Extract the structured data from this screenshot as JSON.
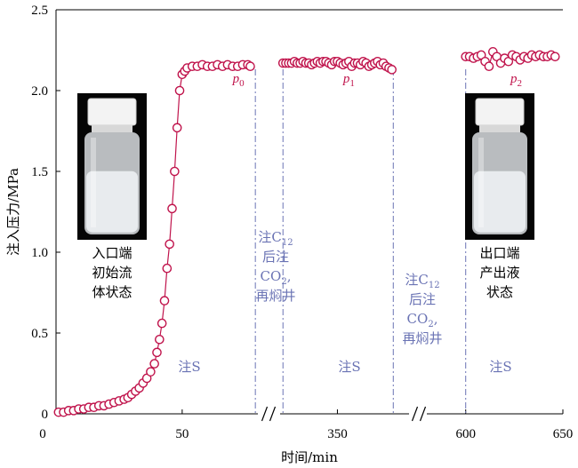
{
  "chart_data": {
    "type": "scatter",
    "title": "",
    "xlabel": "时间/min",
    "ylabel": "注入压力/MPa",
    "ylim": [
      0,
      2.5
    ],
    "yticks": [
      "0",
      "0.5",
      "1.0",
      "1.5",
      "2.0",
      "2.5"
    ],
    "ytick_values": [
      0,
      0.5,
      1.0,
      1.5,
      2.0,
      2.5
    ],
    "xticks": [
      "0",
      "50",
      "350",
      "600",
      "650"
    ],
    "broken_axis": true,
    "segments": [
      {
        "name": "",
        "xlim": [
          0,
          80
        ],
        "tick_values": [
          0,
          50
        ]
      },
      {
        "name": "",
        "xlim": [
          310,
          400
        ],
        "tick_values": [
          350
        ]
      },
      {
        "name": "",
        "xlim": [
          580,
          650
        ],
        "tick_values": [
          600,
          650
        ]
      }
    ],
    "series_color": "#c0144c",
    "series": [
      {
        "name": "",
        "segment": 0,
        "x": [
          1,
          3,
          5,
          7,
          9,
          11,
          13,
          15,
          17,
          19,
          21,
          23,
          25,
          27,
          28.5,
          30,
          31.5,
          33,
          34.5,
          36,
          37.5,
          39,
          40,
          41,
          42,
          43,
          44,
          45,
          46,
          47,
          48,
          49,
          50,
          51,
          52,
          54,
          56,
          58,
          60,
          62,
          64,
          66,
          68,
          70,
          72,
          74,
          76,
          77
        ],
        "y": [
          0.01,
          0.01,
          0.02,
          0.02,
          0.03,
          0.03,
          0.04,
          0.04,
          0.05,
          0.05,
          0.06,
          0.07,
          0.08,
          0.09,
          0.1,
          0.12,
          0.14,
          0.16,
          0.19,
          0.22,
          0.26,
          0.31,
          0.38,
          0.46,
          0.56,
          0.7,
          0.9,
          1.05,
          1.27,
          1.5,
          1.77,
          2.0,
          2.1,
          2.12,
          2.14,
          2.15,
          2.15,
          2.16,
          2.15,
          2.15,
          2.16,
          2.15,
          2.16,
          2.15,
          2.15,
          2.16,
          2.16,
          2.15
        ]
      },
      {
        "name": "",
        "segment": 1,
        "x": [
          312,
          314,
          316,
          318,
          320,
          322,
          324,
          326,
          328,
          330,
          332,
          334,
          336,
          338,
          340,
          342,
          344,
          346,
          348,
          350,
          352,
          354,
          356,
          358,
          360,
          362,
          364,
          366,
          368,
          370,
          372,
          374,
          376,
          378,
          380,
          382,
          384,
          386,
          388
        ],
        "y": [
          2.17,
          2.17,
          2.17,
          2.17,
          2.18,
          2.17,
          2.17,
          2.18,
          2.17,
          2.17,
          2.16,
          2.17,
          2.18,
          2.17,
          2.18,
          2.18,
          2.17,
          2.16,
          2.18,
          2.18,
          2.17,
          2.16,
          2.17,
          2.18,
          2.15,
          2.17,
          2.17,
          2.16,
          2.18,
          2.17,
          2.15,
          2.16,
          2.17,
          2.18,
          2.16,
          2.17,
          2.15,
          2.14,
          2.13
        ]
      },
      {
        "name": "",
        "segment": 2,
        "x": [
          600,
          602,
          604,
          606,
          608,
          610,
          612,
          614,
          616,
          618,
          620,
          622,
          624,
          626,
          628,
          630,
          632,
          634,
          636,
          638,
          640,
          642,
          644,
          646
        ],
        "y": [
          2.21,
          2.21,
          2.2,
          2.21,
          2.22,
          2.18,
          2.15,
          2.24,
          2.21,
          2.17,
          2.2,
          2.18,
          2.22,
          2.21,
          2.19,
          2.21,
          2.2,
          2.22,
          2.21,
          2.22,
          2.21,
          2.21,
          2.22,
          2.21
        ]
      }
    ],
    "vlines": [
      {
        "segment": 0,
        "x": 79
      },
      {
        "segment": 1,
        "x": 312
      },
      {
        "segment": 1,
        "x": 389
      },
      {
        "segment": 2,
        "x": 600
      }
    ],
    "point_labels": [
      {
        "text": "p",
        "sub": "0",
        "segment": 0,
        "x": 70,
        "y": 2.05
      },
      {
        "text": "p",
        "sub": "1",
        "segment": 1,
        "x": 354,
        "y": 2.05
      },
      {
        "text": "p",
        "sub": "2",
        "segment": 2,
        "x": 623,
        "y": 2.05
      }
    ],
    "stage_labels": [
      "注S",
      "注S",
      "注S"
    ],
    "annotations": [
      {
        "lines": [
          "注C",
          "后注",
          "CO",
          "再焖井"
        ],
        "subs": [
          "12",
          "",
          "2",
          ""
        ],
        "suffix": [
          "",
          "",
          ",",
          ""
        ]
      },
      {
        "lines": [
          "注C",
          "后注",
          "CO",
          "再焖井"
        ],
        "subs": [
          "12",
          "",
          "2",
          ""
        ],
        "suffix": [
          "",
          "",
          ",",
          ""
        ]
      }
    ],
    "photos": [
      {
        "caption": [
          "入口端",
          "初始流",
          "体状态"
        ]
      },
      {
        "caption": [
          "出口端",
          "产出液",
          "状态"
        ]
      }
    ]
  }
}
